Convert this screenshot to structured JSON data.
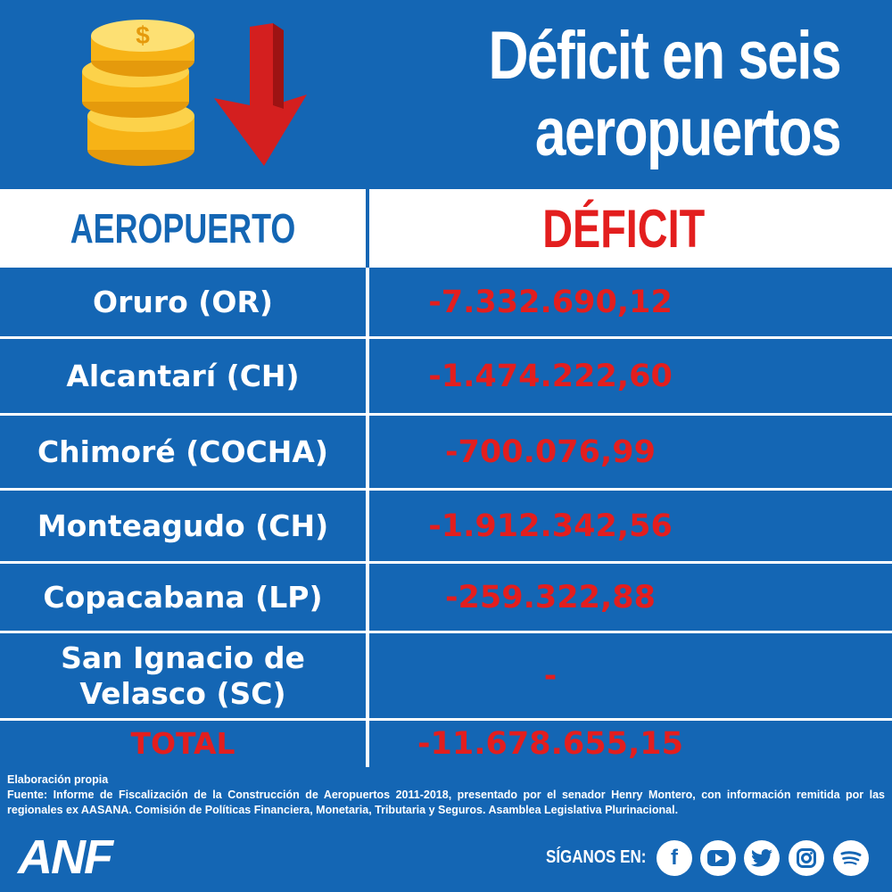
{
  "title": {
    "line1": "Déficit en seis",
    "line2": "aeropuertos"
  },
  "table": {
    "header_left": "AEROPUERTO",
    "header_right": "DÉFICIT",
    "rows": [
      {
        "airport": "Oruro (OR)",
        "deficit": "-7.332.690,12"
      },
      {
        "airport": "Alcantarí (CH)",
        "deficit": "-1.474.222,60"
      },
      {
        "airport": "Chimoré (COCHA)",
        "deficit": "-700.076,99"
      },
      {
        "airport": "Monteagudo (CH)",
        "deficit": "-1.912.342,56"
      },
      {
        "airport": "Copacabana (LP)",
        "deficit": "-259.322,88"
      },
      {
        "airport": "San Ignacio de Velasco (SC)",
        "deficit": "-"
      }
    ],
    "total_label": "TOTAL",
    "total_value": "-11.678.655,15"
  },
  "footer": {
    "line1": "Elaboración propia",
    "line2": "Fuente: Informe de Fiscalización de la Construcción de Aeropuertos 2011-2018, presentado por el senador Henry Montero, con información remitida por las regionales ex AASANA. Comisión de Políticas Financiera, Monetaria, Tributaria y Seguros. Asamblea Legislativa Plurinacional."
  },
  "brand": "ANF",
  "follow_label": "SÍGANOS EN:",
  "social_icons": [
    "facebook-icon",
    "youtube-icon",
    "twitter-icon",
    "instagram-icon",
    "spotify-icon"
  ],
  "colors": {
    "background": "#1466b4",
    "accent_red": "#e31e1e",
    "white": "#ffffff",
    "gold": "#f7b316"
  }
}
